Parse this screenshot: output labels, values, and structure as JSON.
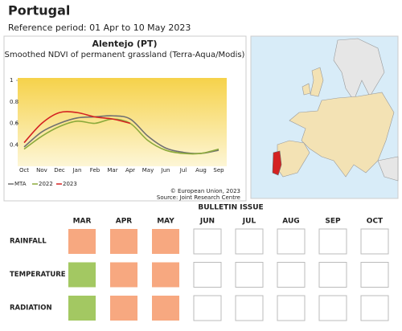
{
  "title": "Portugal",
  "subtitle": "Reference period: 01 Apr to 10 May 2023",
  "chart_data": {
    "type": "line",
    "title": "Alentejo (PT)",
    "subtitle": "Smoothed NDVI of permanent grassland (Terra-Aqua/Modis)",
    "categories": [
      "Oct",
      "Nov",
      "Dec",
      "Jan",
      "Feb",
      "Mar",
      "Apr",
      "May",
      "Jun",
      "Jul",
      "Aug",
      "Sep"
    ],
    "series": [
      {
        "name": "MTA",
        "color": "#707070",
        "values": [
          0.38,
          0.52,
          0.6,
          0.65,
          0.66,
          0.67,
          0.64,
          0.48,
          0.37,
          0.33,
          0.32,
          0.35
        ]
      },
      {
        "name": "2022",
        "color": "#8caa3c",
        "values": [
          0.36,
          0.48,
          0.57,
          0.62,
          0.6,
          0.64,
          0.6,
          0.44,
          0.35,
          0.32,
          0.32,
          0.36
        ]
      },
      {
        "name": "2023",
        "color": "#d42222",
        "values": [
          0.42,
          0.6,
          0.7,
          0.7,
          0.66,
          0.64,
          0.6,
          null,
          null,
          null,
          null,
          null
        ]
      }
    ],
    "ylim": [
      0.2,
      1
    ],
    "yticks": [
      0.4,
      0.6,
      0.8,
      1
    ],
    "grid": false,
    "legend": "bottom-left",
    "credits": [
      "© European Union, 2023",
      "Source: Joint Research Centre"
    ]
  },
  "bulletin": {
    "title": "BULLETIN ISSUE",
    "months": [
      "MAR",
      "APR",
      "MAY",
      "JUN",
      "JUL",
      "AUG",
      "SEP",
      "OCT"
    ],
    "rows": [
      {
        "label": "RAINFALL",
        "cells": [
          "#f7a880",
          "#f7a880",
          "#f7a880",
          null,
          null,
          null,
          null,
          null
        ]
      },
      {
        "label": "TEMPERATURE",
        "cells": [
          "#a3c862",
          "#f7a880",
          "#f7a880",
          null,
          null,
          null,
          null,
          null
        ]
      },
      {
        "label": "RADIATION",
        "cells": [
          "#a3c862",
          "#f7a880",
          "#f7a880",
          null,
          null,
          null,
          null,
          null
        ]
      }
    ]
  }
}
